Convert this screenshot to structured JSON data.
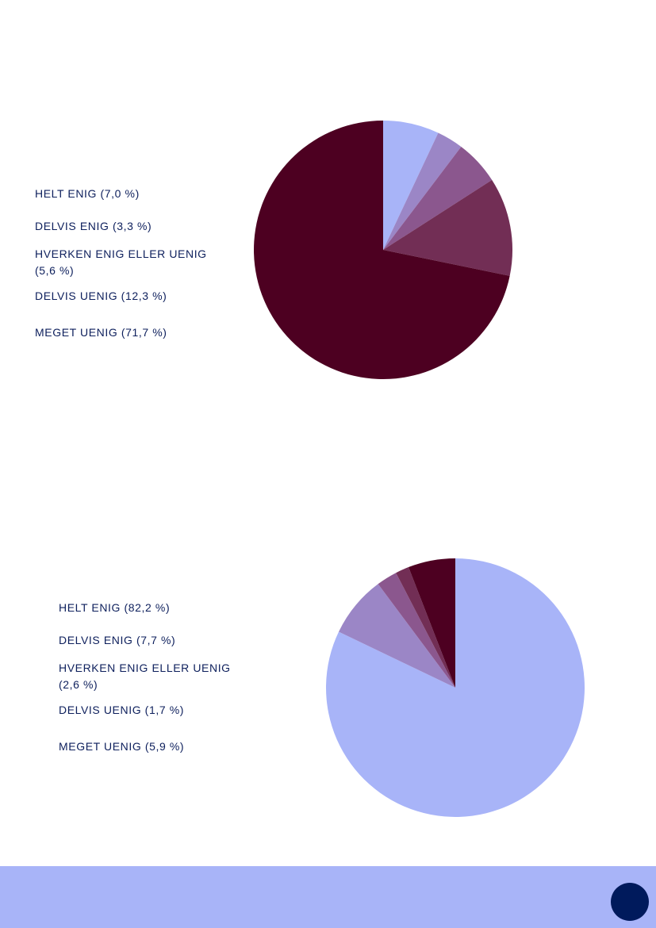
{
  "colors": {
    "slice_1": "#a8b4f8",
    "slice_2": "#9b86c6",
    "slice_3": "#8b578e",
    "slice_4": "#722e55",
    "slice_5": "#4d0021",
    "legend_text": "#0d1f5c",
    "footer_band": "#a8b4f8",
    "footer_dot": "#001a5c"
  },
  "chart_data": [
    {
      "type": "pie",
      "categories": [
        "HELT ENIG (7,0 %)",
        "DELVIS ENIG (3,3 %)",
        "HVERKEN ENIG ELLER UENIG (5,6 %)",
        "DELVIS UENIG (12,3 %)",
        "MEGET UENIG (71,7 %)"
      ],
      "values": [
        7.0,
        3.3,
        5.6,
        12.3,
        71.7
      ],
      "legend_position": "left"
    },
    {
      "type": "pie",
      "categories": [
        "HELT ENIG (82,2 %)",
        "DELVIS ENIG (7,7 %)",
        "HVERKEN ENIG ELLER UENIG (2,6 %)",
        "DELVIS UENIG (1,7 %)",
        "MEGET UENIG (5,9 %)"
      ],
      "values": [
        82.2,
        7.7,
        2.6,
        1.7,
        5.9
      ],
      "legend_position": "left"
    }
  ]
}
